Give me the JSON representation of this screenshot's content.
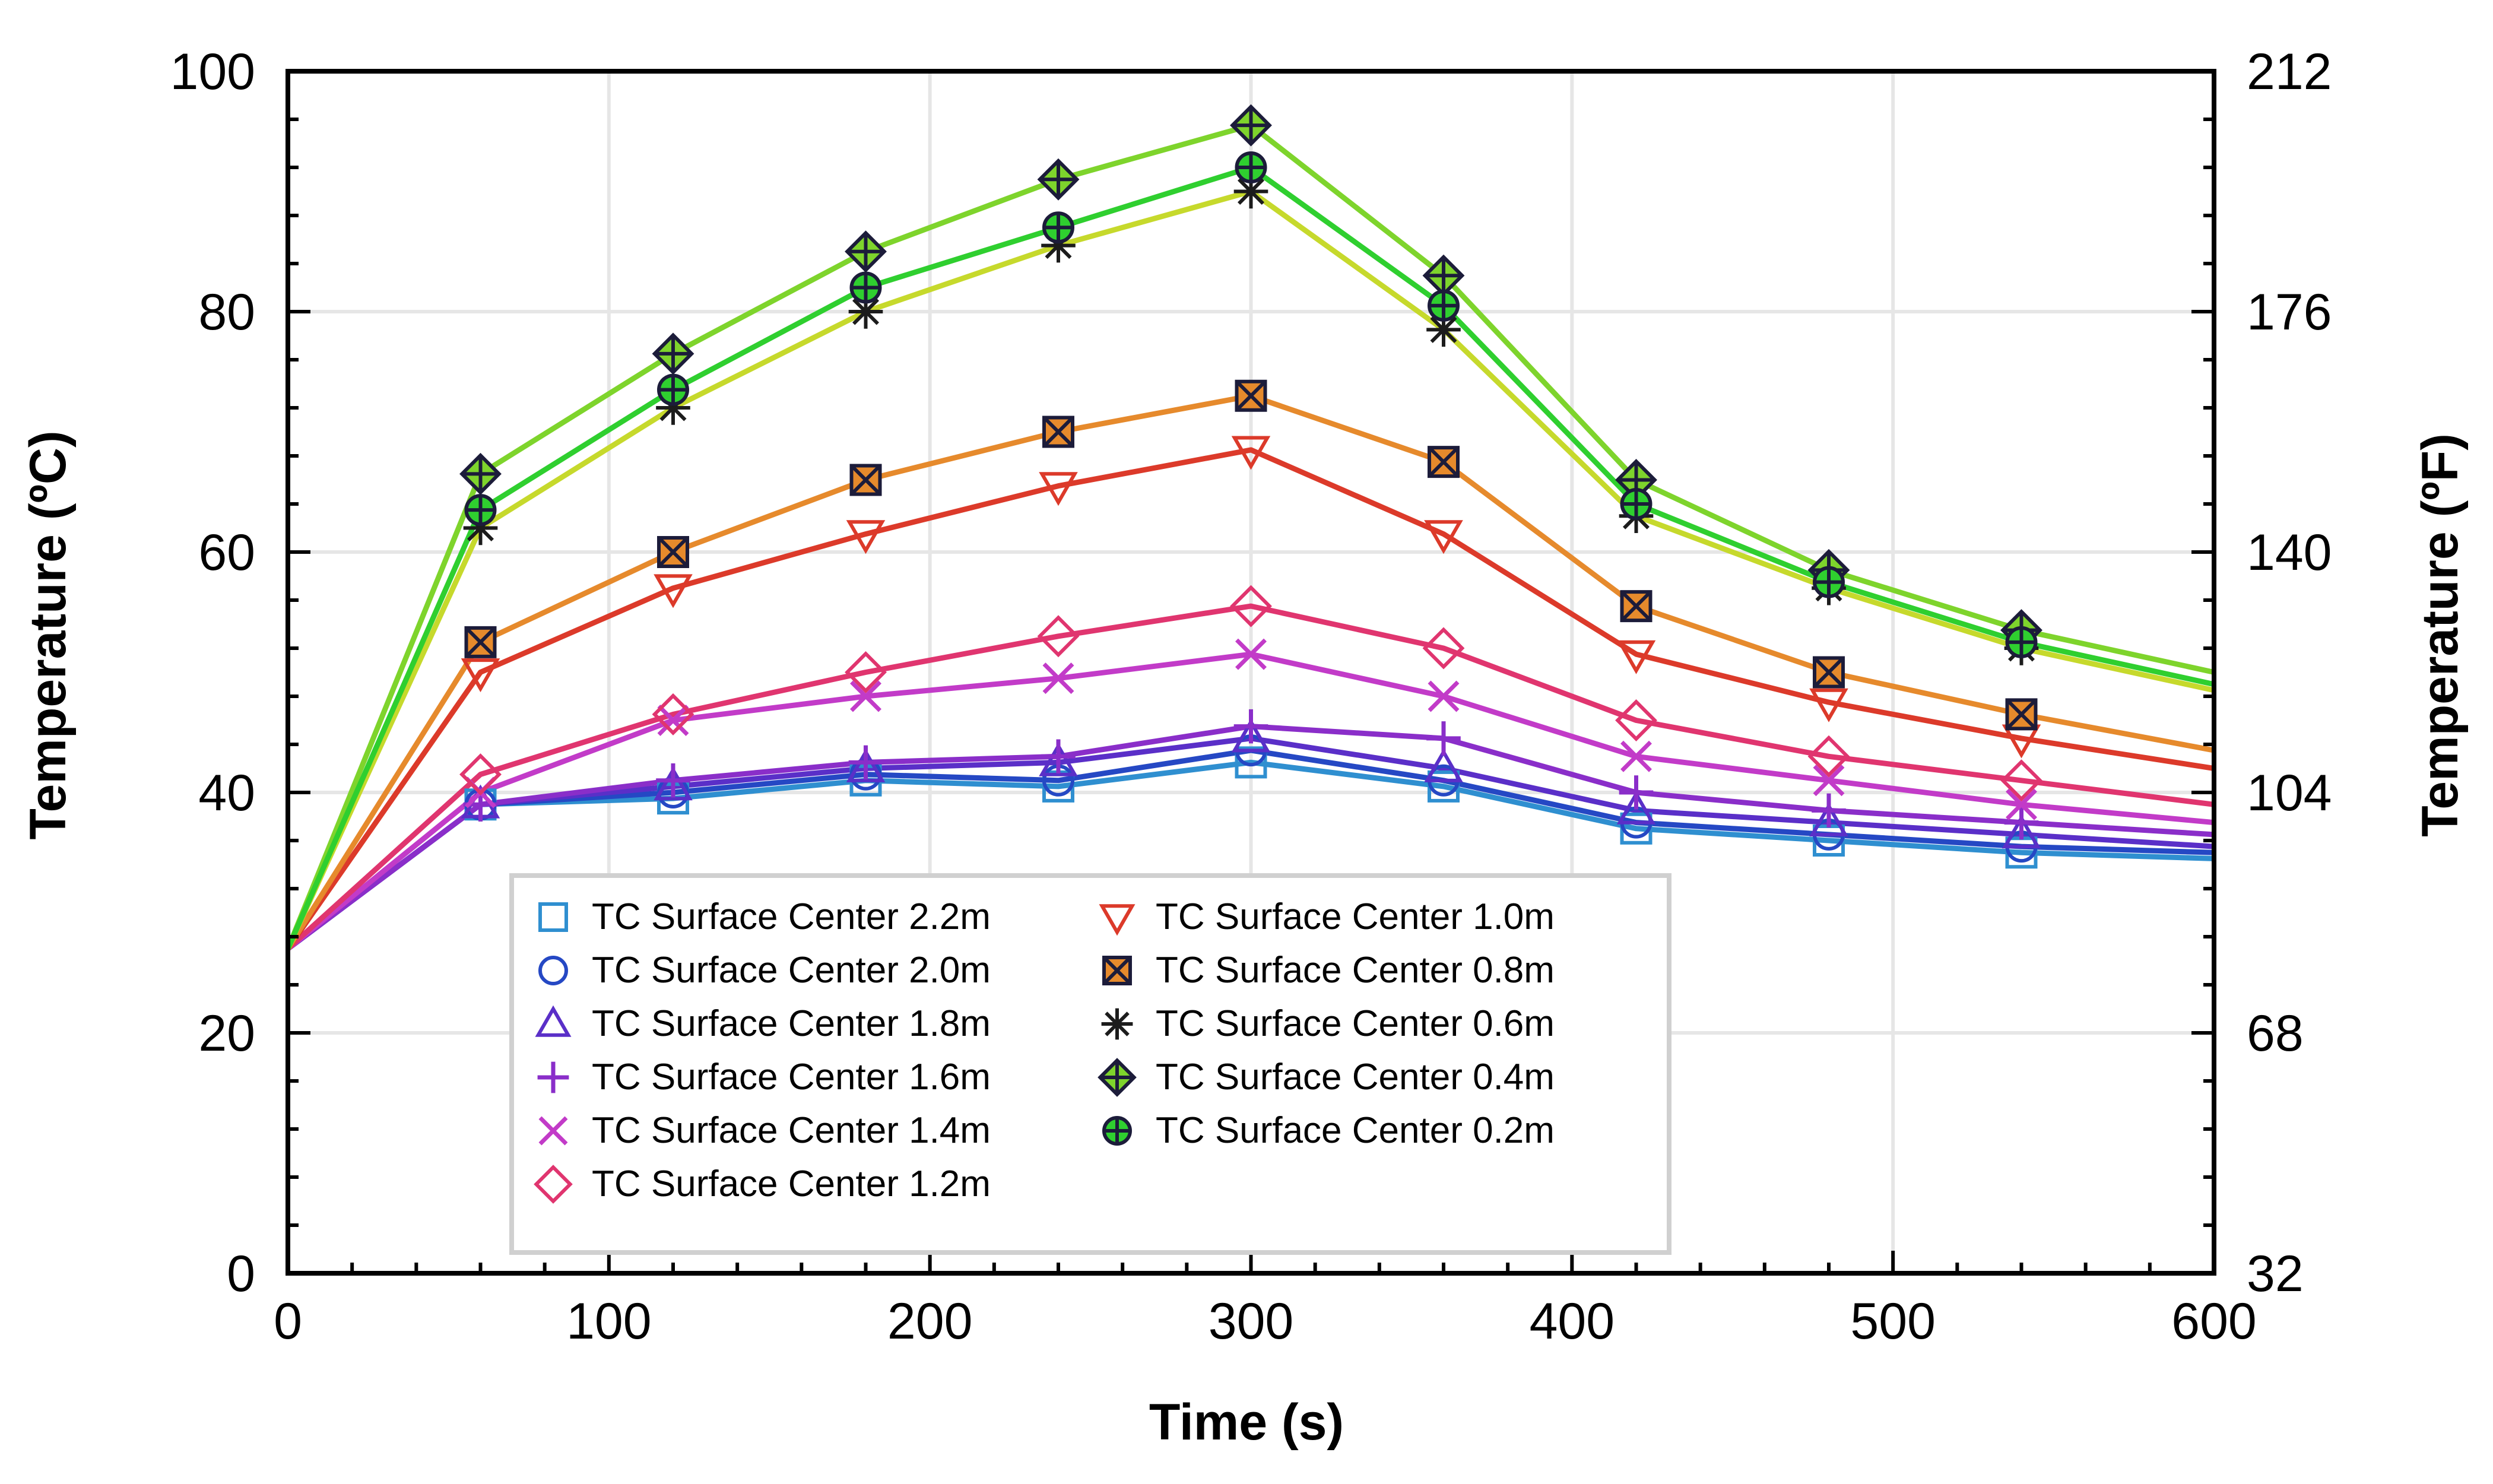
{
  "chart_data": {
    "type": "line",
    "xlabel": "Time (s)",
    "ylabel": "Temperature (ºC)",
    "ylabel_right": "Temperature (ºF)",
    "xlim": [
      0,
      600
    ],
    "ylim": [
      0,
      100
    ],
    "ylim_right": [
      32,
      212
    ],
    "x_ticks": [
      "0",
      "100",
      "200",
      "300",
      "400",
      "500",
      "600"
    ],
    "y_ticks": [
      "0",
      "20",
      "40",
      "60",
      "80",
      "100"
    ],
    "y_ticks_right": [
      "32",
      "68",
      "104",
      "140",
      "176",
      "212"
    ],
    "grid": true,
    "legend_position": "lower-center",
    "x": [
      0,
      60,
      120,
      180,
      240,
      300,
      360,
      420,
      480,
      540,
      600
    ],
    "series": [
      {
        "name": "TC Surface Center 2.2m",
        "marker": "square",
        "color": "#2f8fd0",
        "values": [
          27,
          39,
          39.5,
          41,
          40.5,
          42.5,
          40.5,
          37,
          36,
          35,
          34.5
        ]
      },
      {
        "name": "TC Surface Center 2.0m",
        "marker": "circle",
        "color": "#2548c4",
        "values": [
          27,
          39,
          40,
          41.5,
          41,
          43.5,
          41,
          37.5,
          36.5,
          35.5,
          35
        ]
      },
      {
        "name": "TC Surface Center 1.8m",
        "marker": "triangle-up",
        "color": "#5a2fc8",
        "values": [
          27,
          39,
          40.5,
          42,
          42.5,
          44.5,
          42,
          38.5,
          37.5,
          36.5,
          35.5
        ]
      },
      {
        "name": "TC Surface Center 1.6m",
        "marker": "plus",
        "color": "#8a2ec9",
        "values": [
          27,
          39,
          41,
          42.5,
          43,
          45.5,
          44.5,
          40,
          38.5,
          37.5,
          36.5
        ]
      },
      {
        "name": "TC Surface Center 1.4m",
        "marker": "x",
        "color": "#c23bc8",
        "values": [
          27,
          40,
          46,
          48,
          49.5,
          51.5,
          48,
          43,
          41,
          39,
          37.5
        ]
      },
      {
        "name": "TC Surface Center 1.2m",
        "marker": "diamond",
        "color": "#e0356f",
        "values": [
          27,
          41.5,
          46.5,
          50,
          53,
          55.5,
          52,
          46,
          43,
          41,
          39
        ]
      },
      {
        "name": "TC Surface Center 1.0m",
        "marker": "triangle-down",
        "color": "#dc3a2a",
        "values": [
          27,
          50,
          57,
          61.5,
          65.5,
          68.5,
          61.5,
          51.5,
          47.5,
          44.5,
          42
        ]
      },
      {
        "name": "TC Surface Center 0.8m",
        "marker": "square-x",
        "color": "#e68a2c",
        "values": [
          27,
          52.5,
          60,
          66,
          70,
          73,
          67.5,
          55.5,
          50,
          46.5,
          43.5
        ]
      },
      {
        "name": "TC Surface Center 0.6m",
        "marker": "asterisk",
        "color": "#c6d92c",
        "values": [
          27,
          62,
          72,
          80,
          85.5,
          90,
          78.5,
          63,
          57,
          52,
          48.5
        ]
      },
      {
        "name": "TC Surface Center 0.4m",
        "marker": "diamond-plus",
        "color": "#7ed42c",
        "values": [
          27,
          66.5,
          76.5,
          85,
          91,
          95.5,
          83,
          66,
          58.5,
          53.5,
          50
        ]
      },
      {
        "name": "TC Surface Center 0.2m",
        "marker": "circle-plus",
        "color": "#2fcf2f",
        "values": [
          27,
          63.5,
          73.5,
          82,
          87,
          92,
          80.5,
          64,
          57.5,
          52.5,
          49
        ]
      }
    ]
  }
}
